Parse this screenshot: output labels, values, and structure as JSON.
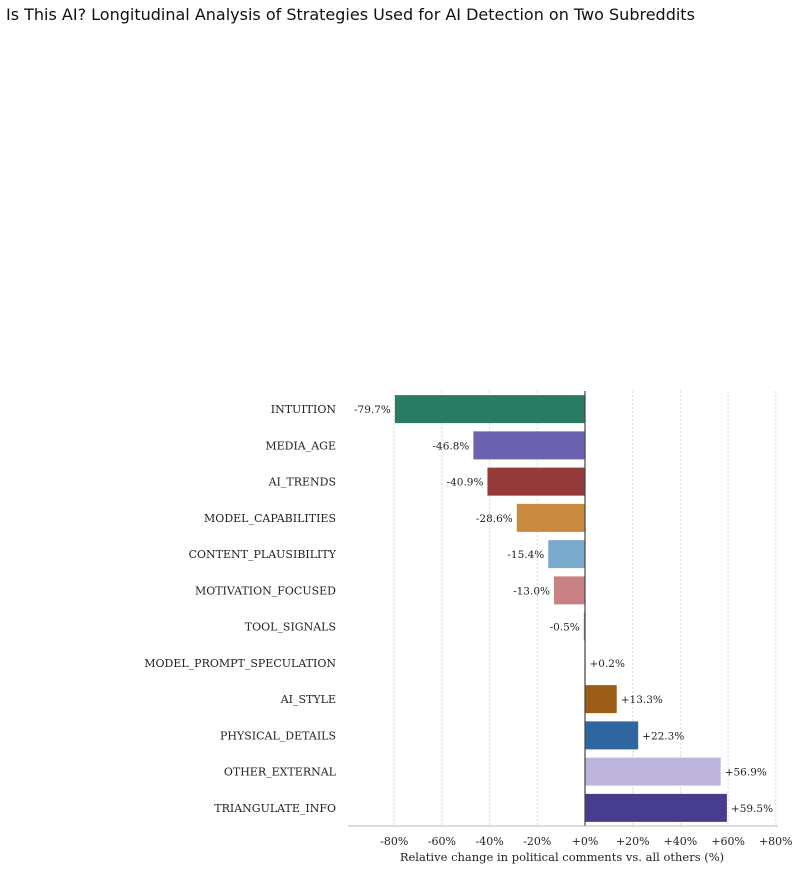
{
  "page": {
    "title": "Is This AI? Longitudinal Analysis of Strategies Used for AI Detection on Two Subreddits"
  },
  "chart_data": {
    "type": "bar",
    "orientation": "horizontal",
    "title": "",
    "xlabel": "Relative change in political comments vs. all others (%)",
    "ylabel": "",
    "xlim": [
      -100,
      82
    ],
    "xticks": [
      -80,
      -60,
      -40,
      -20,
      0,
      20,
      40,
      60,
      80
    ],
    "xtick_labels": [
      "-80%",
      "-60%",
      "-40%",
      "-20%",
      "+0%",
      "+20%",
      "+40%",
      "+60%",
      "+80%"
    ],
    "grid": "vertical dashed",
    "categories": [
      "INTUITION",
      "MEDIA_AGE",
      "AI_TRENDS",
      "MODEL_CAPABILITIES",
      "CONTENT_PLAUSIBILITY",
      "MOTIVATION_FOCUSED",
      "TOOL_SIGNALS",
      "MODEL_PROMPT_SPECULATION",
      "AI_STYLE",
      "PHYSICAL_DETAILS",
      "OTHER_EXTERNAL",
      "TRIANGULATE_INFO"
    ],
    "values": [
      -79.7,
      -46.8,
      -40.9,
      -28.6,
      -15.4,
      -13.0,
      -0.5,
      0.2,
      13.3,
      22.3,
      56.9,
      59.5
    ],
    "value_labels": [
      "-79.7%",
      "-46.8%",
      "-40.9%",
      "-28.6%",
      "-15.4%",
      "-13.0%",
      "-0.5%",
      "+0.2%",
      "+13.3%",
      "+22.3%",
      "+56.9%",
      "+59.5%"
    ],
    "colors": [
      "#2a7b64",
      "#6b62b0",
      "#943a38",
      "#c98a40",
      "#7aaacb",
      "#c98183",
      "#8e8e8e",
      "#8e8e8e",
      "#9c5d16",
      "#2d66a1",
      "#bdb5dc",
      "#483c8e"
    ]
  }
}
